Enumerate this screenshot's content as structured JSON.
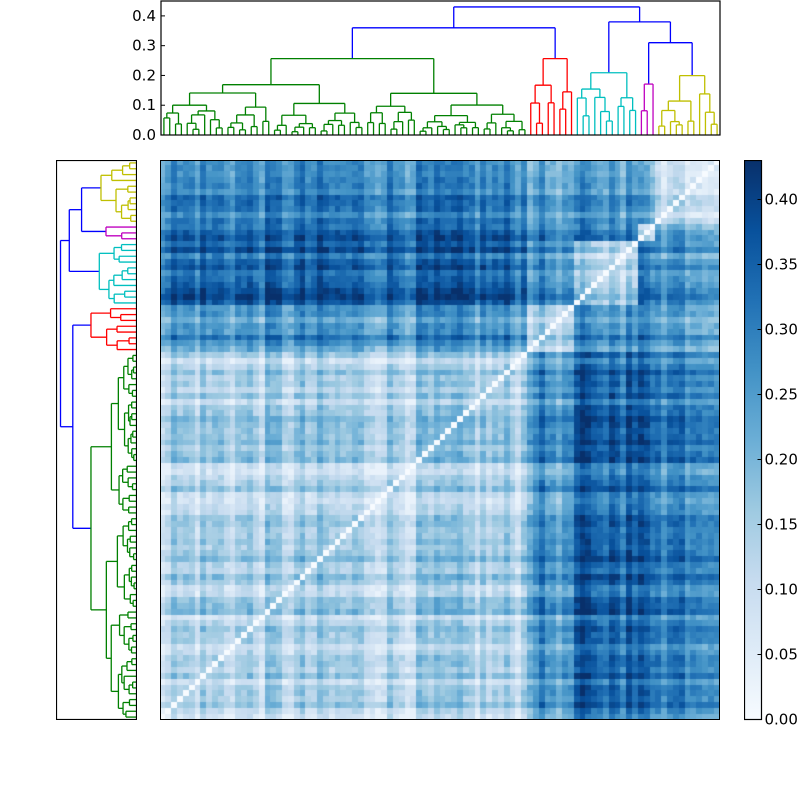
{
  "chart_data": {
    "type": "heatmap",
    "title": "",
    "description": "Clustered distance matrix heatmap with hierarchical dendrograms (top and left) and a colorbar",
    "n_items": 96,
    "colormap": "Blues",
    "colorbar": {
      "ticks": [
        "0.00",
        "0.05",
        "0.10",
        "0.15",
        "0.20",
        "0.25",
        "0.30",
        "0.35",
        "0.40"
      ],
      "range": [
        0.0,
        0.43
      ]
    },
    "top_dendrogram": {
      "yaxis_ticks": [
        "0.0",
        "0.1",
        "0.2",
        "0.3",
        "0.4"
      ],
      "ylim": [
        0.0,
        0.45
      ],
      "clusters": [
        {
          "color": "#008000",
          "name": "green",
          "leaves": 63,
          "merge_height": 0.27
        },
        {
          "color": "#ff0000",
          "name": "red",
          "leaves": 8,
          "merge_height": 0.27
        },
        {
          "color": "#00bfbf",
          "name": "cyan",
          "leaves": 11,
          "merge_height": 0.22
        },
        {
          "color": "#bf00bf",
          "name": "magenta",
          "leaves": 3,
          "merge_height": 0.18
        },
        {
          "color": "#bfbf00",
          "name": "yellow",
          "leaves": 11,
          "merge_height": 0.21
        }
      ],
      "link_color_above_threshold": "#0000ff",
      "top_merges": [
        {
          "height": 0.36,
          "desc": "green+red"
        },
        {
          "height": 0.38,
          "desc": "cyan + (magenta+yellow)"
        },
        {
          "height": 0.31,
          "desc": "magenta+yellow"
        },
        {
          "height": 0.43,
          "desc": "root"
        }
      ]
    },
    "left_dendrogram": {
      "orientation": "left",
      "cluster_order_top_to_bottom": [
        "yellow",
        "magenta",
        "cyan",
        "red",
        "green"
      ]
    },
    "heatmap_features": {
      "diagonal": "white (0.0), running bottom-left to top-right",
      "darkest_blocks": "rows of cyan/magenta/yellow clusters vs green cluster (~0.35-0.42)",
      "lightest_blocks": "within-green cluster distances (~0.08-0.18)"
    }
  }
}
